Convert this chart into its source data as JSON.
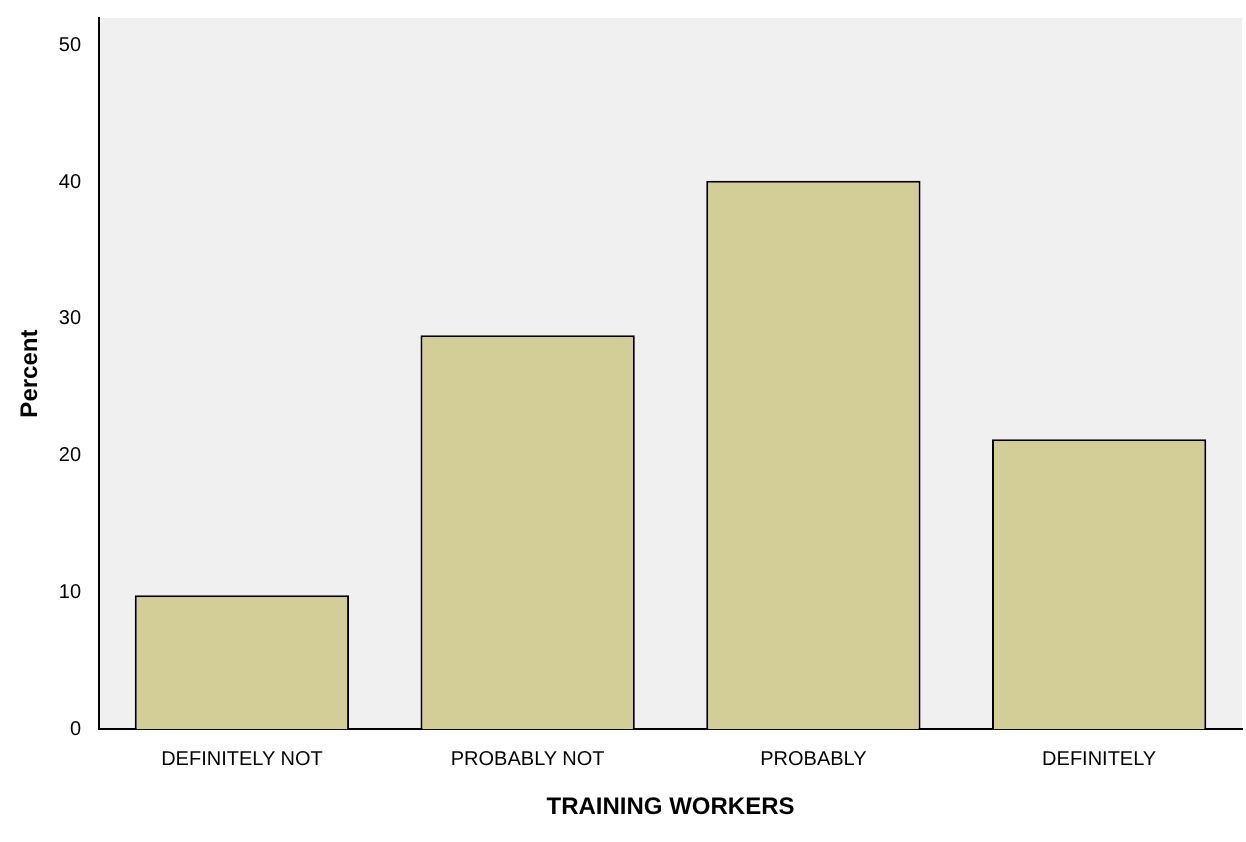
{
  "chart_data": {
    "type": "bar",
    "xlabel": "TRAINING WORKERS",
    "ylabel": "Percent",
    "categories": [
      "DEFINITELY NOT",
      "PROBABLY NOT",
      "PROBABLY",
      "DEFINITELY"
    ],
    "values": [
      9.8,
      28.8,
      40.1,
      21.2
    ],
    "color": "#d3ce98",
    "ylim": [
      0,
      52
    ],
    "yticks": [
      0,
      10,
      20,
      30,
      40,
      50
    ],
    "grid": false,
    "legend": false
  }
}
